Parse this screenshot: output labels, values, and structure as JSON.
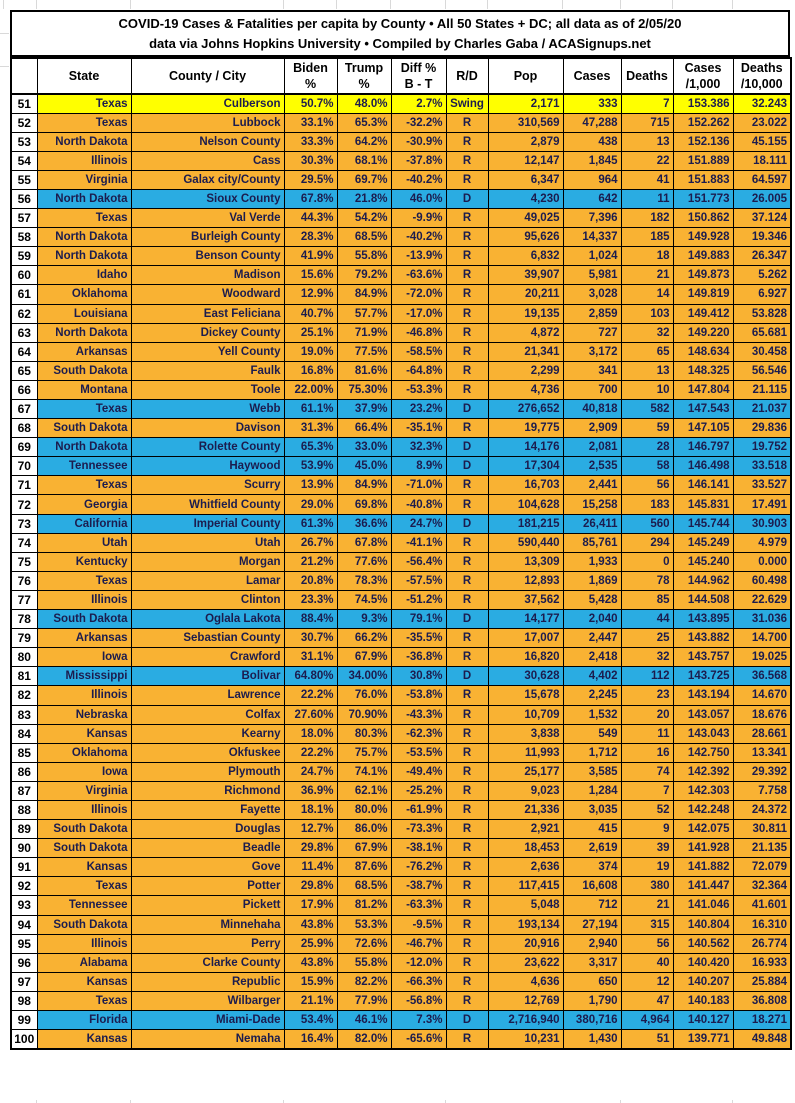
{
  "title": {
    "line1": "COVID-19 Cases & Fatalities per capita by County • All 50 States + DC; all data as of 2/05/20",
    "line2": "data via Johns Hopkins University • Compiled by Charles Gaba / ACASignups.net"
  },
  "colors": {
    "republican_row": "#F9B233",
    "democrat_row": "#2AACE2",
    "swing_row": "#FFFF00",
    "table_border": "#000000",
    "data_text": "#1C1C4E"
  },
  "chart_data": {
    "type": "table",
    "title": "COVID-19 Cases & Fatalities per capita by County",
    "fields": [
      "rank",
      "state",
      "county",
      "biden_pct",
      "trump_pct",
      "diff_pct",
      "party",
      "pop",
      "cases",
      "deaths",
      "cases_per_1000",
      "deaths_per_10000"
    ],
    "columns": [
      "",
      "State",
      "County / City",
      "Biden\n%",
      "Trump\n%",
      "Diff %\nB - T",
      "R/D",
      "Pop",
      "Cases",
      "Deaths",
      "Cases\n/1,000",
      "Deaths\n/10,000"
    ],
    "rows": [
      [
        "51",
        "Texas",
        "Culberson",
        "50.7%",
        "48.0%",
        "2.7%",
        "Swing",
        "2,171",
        "333",
        "7",
        "153.386",
        "32.243"
      ],
      [
        "52",
        "Texas",
        "Lubbock",
        "33.1%",
        "65.3%",
        "-32.2%",
        "R",
        "310,569",
        "47,288",
        "715",
        "152.262",
        "23.022"
      ],
      [
        "53",
        "North Dakota",
        "Nelson County",
        "33.3%",
        "64.2%",
        "-30.9%",
        "R",
        "2,879",
        "438",
        "13",
        "152.136",
        "45.155"
      ],
      [
        "54",
        "Illinois",
        "Cass",
        "30.3%",
        "68.1%",
        "-37.8%",
        "R",
        "12,147",
        "1,845",
        "22",
        "151.889",
        "18.111"
      ],
      [
        "55",
        "Virginia",
        "Galax city/County",
        "29.5%",
        "69.7%",
        "-40.2%",
        "R",
        "6,347",
        "964",
        "41",
        "151.883",
        "64.597"
      ],
      [
        "56",
        "North Dakota",
        "Sioux County",
        "67.8%",
        "21.8%",
        "46.0%",
        "D",
        "4,230",
        "642",
        "11",
        "151.773",
        "26.005"
      ],
      [
        "57",
        "Texas",
        "Val Verde",
        "44.3%",
        "54.2%",
        "-9.9%",
        "R",
        "49,025",
        "7,396",
        "182",
        "150.862",
        "37.124"
      ],
      [
        "58",
        "North Dakota",
        "Burleigh County",
        "28.3%",
        "68.5%",
        "-40.2%",
        "R",
        "95,626",
        "14,337",
        "185",
        "149.928",
        "19.346"
      ],
      [
        "59",
        "North Dakota",
        "Benson County",
        "41.9%",
        "55.8%",
        "-13.9%",
        "R",
        "6,832",
        "1,024",
        "18",
        "149.883",
        "26.347"
      ],
      [
        "60",
        "Idaho",
        "Madison",
        "15.6%",
        "79.2%",
        "-63.6%",
        "R",
        "39,907",
        "5,981",
        "21",
        "149.873",
        "5.262"
      ],
      [
        "61",
        "Oklahoma",
        "Woodward",
        "12.9%",
        "84.9%",
        "-72.0%",
        "R",
        "20,211",
        "3,028",
        "14",
        "149.819",
        "6.927"
      ],
      [
        "62",
        "Louisiana",
        "East Feliciana",
        "40.7%",
        "57.7%",
        "-17.0%",
        "R",
        "19,135",
        "2,859",
        "103",
        "149.412",
        "53.828"
      ],
      [
        "63",
        "North Dakota",
        "Dickey County",
        "25.1%",
        "71.9%",
        "-46.8%",
        "R",
        "4,872",
        "727",
        "32",
        "149.220",
        "65.681"
      ],
      [
        "64",
        "Arkansas",
        "Yell County",
        "19.0%",
        "77.5%",
        "-58.5%",
        "R",
        "21,341",
        "3,172",
        "65",
        "148.634",
        "30.458"
      ],
      [
        "65",
        "South Dakota",
        "Faulk",
        "16.8%",
        "81.6%",
        "-64.8%",
        "R",
        "2,299",
        "341",
        "13",
        "148.325",
        "56.546"
      ],
      [
        "66",
        "Montana",
        "Toole",
        "22.00%",
        "75.30%",
        "-53.3%",
        "R",
        "4,736",
        "700",
        "10",
        "147.804",
        "21.115"
      ],
      [
        "67",
        "Texas",
        "Webb",
        "61.1%",
        "37.9%",
        "23.2%",
        "D",
        "276,652",
        "40,818",
        "582",
        "147.543",
        "21.037"
      ],
      [
        "68",
        "South Dakota",
        "Davison",
        "31.3%",
        "66.4%",
        "-35.1%",
        "R",
        "19,775",
        "2,909",
        "59",
        "147.105",
        "29.836"
      ],
      [
        "69",
        "North Dakota",
        "Rolette County",
        "65.3%",
        "33.0%",
        "32.3%",
        "D",
        "14,176",
        "2,081",
        "28",
        "146.797",
        "19.752"
      ],
      [
        "70",
        "Tennessee",
        "Haywood",
        "53.9%",
        "45.0%",
        "8.9%",
        "D",
        "17,304",
        "2,535",
        "58",
        "146.498",
        "33.518"
      ],
      [
        "71",
        "Texas",
        "Scurry",
        "13.9%",
        "84.9%",
        "-71.0%",
        "R",
        "16,703",
        "2,441",
        "56",
        "146.141",
        "33.527"
      ],
      [
        "72",
        "Georgia",
        "Whitfield County",
        "29.0%",
        "69.8%",
        "-40.8%",
        "R",
        "104,628",
        "15,258",
        "183",
        "145.831",
        "17.491"
      ],
      [
        "73",
        "California",
        "Imperial County",
        "61.3%",
        "36.6%",
        "24.7%",
        "D",
        "181,215",
        "26,411",
        "560",
        "145.744",
        "30.903"
      ],
      [
        "74",
        "Utah",
        "Utah",
        "26.7%",
        "67.8%",
        "-41.1%",
        "R",
        "590,440",
        "85,761",
        "294",
        "145.249",
        "4.979"
      ],
      [
        "75",
        "Kentucky",
        "Morgan",
        "21.2%",
        "77.6%",
        "-56.4%",
        "R",
        "13,309",
        "1,933",
        "0",
        "145.240",
        "0.000"
      ],
      [
        "76",
        "Texas",
        "Lamar",
        "20.8%",
        "78.3%",
        "-57.5%",
        "R",
        "12,893",
        "1,869",
        "78",
        "144.962",
        "60.498"
      ],
      [
        "77",
        "Illinois",
        "Clinton",
        "23.3%",
        "74.5%",
        "-51.2%",
        "R",
        "37,562",
        "5,428",
        "85",
        "144.508",
        "22.629"
      ],
      [
        "78",
        "South Dakota",
        "Oglala Lakota",
        "88.4%",
        "9.3%",
        "79.1%",
        "D",
        "14,177",
        "2,040",
        "44",
        "143.895",
        "31.036"
      ],
      [
        "79",
        "Arkansas",
        "Sebastian County",
        "30.7%",
        "66.2%",
        "-35.5%",
        "R",
        "17,007",
        "2,447",
        "25",
        "143.882",
        "14.700"
      ],
      [
        "80",
        "Iowa",
        "Crawford",
        "31.1%",
        "67.9%",
        "-36.8%",
        "R",
        "16,820",
        "2,418",
        "32",
        "143.757",
        "19.025"
      ],
      [
        "81",
        "Mississippi",
        "Bolivar",
        "64.80%",
        "34.00%",
        "30.8%",
        "D",
        "30,628",
        "4,402",
        "112",
        "143.725",
        "36.568"
      ],
      [
        "82",
        "Illinois",
        "Lawrence",
        "22.2%",
        "76.0%",
        "-53.8%",
        "R",
        "15,678",
        "2,245",
        "23",
        "143.194",
        "14.670"
      ],
      [
        "83",
        "Nebraska",
        "Colfax",
        "27.60%",
        "70.90%",
        "-43.3%",
        "R",
        "10,709",
        "1,532",
        "20",
        "143.057",
        "18.676"
      ],
      [
        "84",
        "Kansas",
        "Kearny",
        "18.0%",
        "80.3%",
        "-62.3%",
        "R",
        "3,838",
        "549",
        "11",
        "143.043",
        "28.661"
      ],
      [
        "85",
        "Oklahoma",
        "Okfuskee",
        "22.2%",
        "75.7%",
        "-53.5%",
        "R",
        "11,993",
        "1,712",
        "16",
        "142.750",
        "13.341"
      ],
      [
        "86",
        "Iowa",
        "Plymouth",
        "24.7%",
        "74.1%",
        "-49.4%",
        "R",
        "25,177",
        "3,585",
        "74",
        "142.392",
        "29.392"
      ],
      [
        "87",
        "Virginia",
        "Richmond",
        "36.9%",
        "62.1%",
        "-25.2%",
        "R",
        "9,023",
        "1,284",
        "7",
        "142.303",
        "7.758"
      ],
      [
        "88",
        "Illinois",
        "Fayette",
        "18.1%",
        "80.0%",
        "-61.9%",
        "R",
        "21,336",
        "3,035",
        "52",
        "142.248",
        "24.372"
      ],
      [
        "89",
        "South Dakota",
        "Douglas",
        "12.7%",
        "86.0%",
        "-73.3%",
        "R",
        "2,921",
        "415",
        "9",
        "142.075",
        "30.811"
      ],
      [
        "90",
        "South Dakota",
        "Beadle",
        "29.8%",
        "67.9%",
        "-38.1%",
        "R",
        "18,453",
        "2,619",
        "39",
        "141.928",
        "21.135"
      ],
      [
        "91",
        "Kansas",
        "Gove",
        "11.4%",
        "87.6%",
        "-76.2%",
        "R",
        "2,636",
        "374",
        "19",
        "141.882",
        "72.079"
      ],
      [
        "92",
        "Texas",
        "Potter",
        "29.8%",
        "68.5%",
        "-38.7%",
        "R",
        "117,415",
        "16,608",
        "380",
        "141.447",
        "32.364"
      ],
      [
        "93",
        "Tennessee",
        "Pickett",
        "17.9%",
        "81.2%",
        "-63.3%",
        "R",
        "5,048",
        "712",
        "21",
        "141.046",
        "41.601"
      ],
      [
        "94",
        "South Dakota",
        "Minnehaha",
        "43.8%",
        "53.3%",
        "-9.5%",
        "R",
        "193,134",
        "27,194",
        "315",
        "140.804",
        "16.310"
      ],
      [
        "95",
        "Illinois",
        "Perry",
        "25.9%",
        "72.6%",
        "-46.7%",
        "R",
        "20,916",
        "2,940",
        "56",
        "140.562",
        "26.774"
      ],
      [
        "96",
        "Alabama",
        "Clarke County",
        "43.8%",
        "55.8%",
        "-12.0%",
        "R",
        "23,622",
        "3,317",
        "40",
        "140.420",
        "16.933"
      ],
      [
        "97",
        "Kansas",
        "Republic",
        "15.9%",
        "82.2%",
        "-66.3%",
        "R",
        "4,636",
        "650",
        "12",
        "140.207",
        "25.884"
      ],
      [
        "98",
        "Texas",
        "Wilbarger",
        "21.1%",
        "77.9%",
        "-56.8%",
        "R",
        "12,769",
        "1,790",
        "47",
        "140.183",
        "36.808"
      ],
      [
        "99",
        "Florida",
        "Miami-Dade",
        "53.4%",
        "46.1%",
        "7.3%",
        "D",
        "2,716,940",
        "380,716",
        "4,964",
        "140.127",
        "18.271"
      ],
      [
        "100",
        "Kansas",
        "Nemaha",
        "16.4%",
        "82.0%",
        "-65.6%",
        "R",
        "10,231",
        "1,430",
        "51",
        "139.771",
        "49.848"
      ]
    ]
  }
}
